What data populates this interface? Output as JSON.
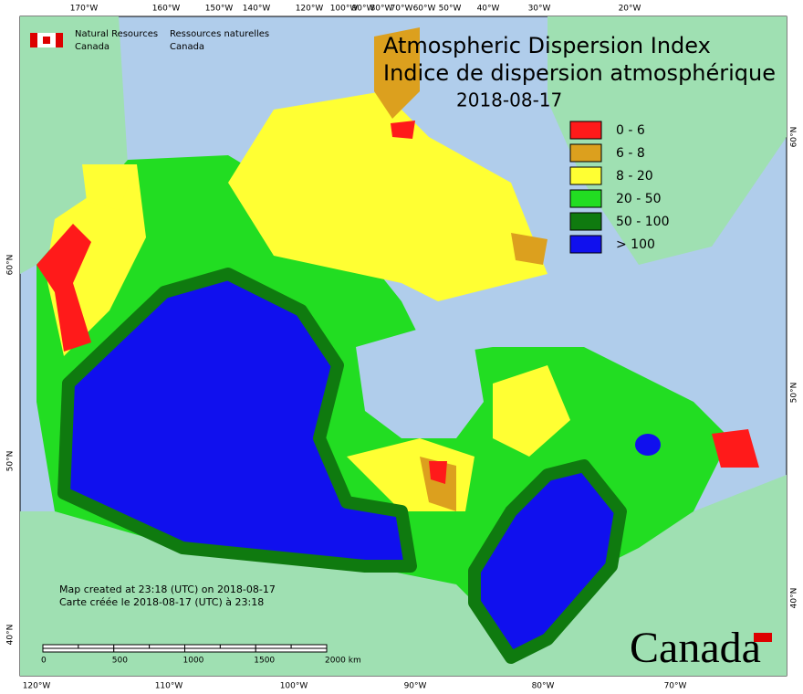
{
  "header": {
    "agency_en": [
      "Natural Resources",
      "Canada"
    ],
    "agency_fr": [
      "Ressources naturelles",
      "Canada"
    ]
  },
  "title": [
    "Atmospheric Dispersion Index",
    "Indice de dispersion atmosphérique"
  ],
  "date": "2018-08-17",
  "legend": [
    {
      "label": "0 - 6",
      "color": "#ff1a1a"
    },
    {
      "label": "6 - 8",
      "color": "#dca01e"
    },
    {
      "label": "8 - 20",
      "color": "#ffff33"
    },
    {
      "label": "20 - 50",
      "color": "#22dd22"
    },
    {
      "label": "50 - 100",
      "color": "#0f7a0f"
    },
    {
      "label": "> 100",
      "color": "#1010ee"
    }
  ],
  "top_labels": [
    "170°W",
    "160°W",
    "150°W",
    "140°W",
    "120°W",
    "100°W",
    "90°W",
    "80°W",
    "70°W",
    "60°W",
    "50°W",
    "40°W",
    "30°W",
    "20°W"
  ],
  "bottom_labels": [
    "120°W",
    "110°W",
    "100°W",
    "90°W",
    "80°W",
    "70°W"
  ],
  "left_labels": [
    "60°N",
    "50°N",
    "40°N"
  ],
  "right_labels": [
    "60°N",
    "50°N",
    "40°N"
  ],
  "scale_bar": [
    "0",
    "500",
    "1000",
    "1500",
    "2000 km"
  ],
  "notes": [
    "Map created at 23:18 (UTC) on 2018-08-17",
    "Carte créée le 2018-08-17 (UTC) à 23:18"
  ],
  "wordmark": "Canada"
}
